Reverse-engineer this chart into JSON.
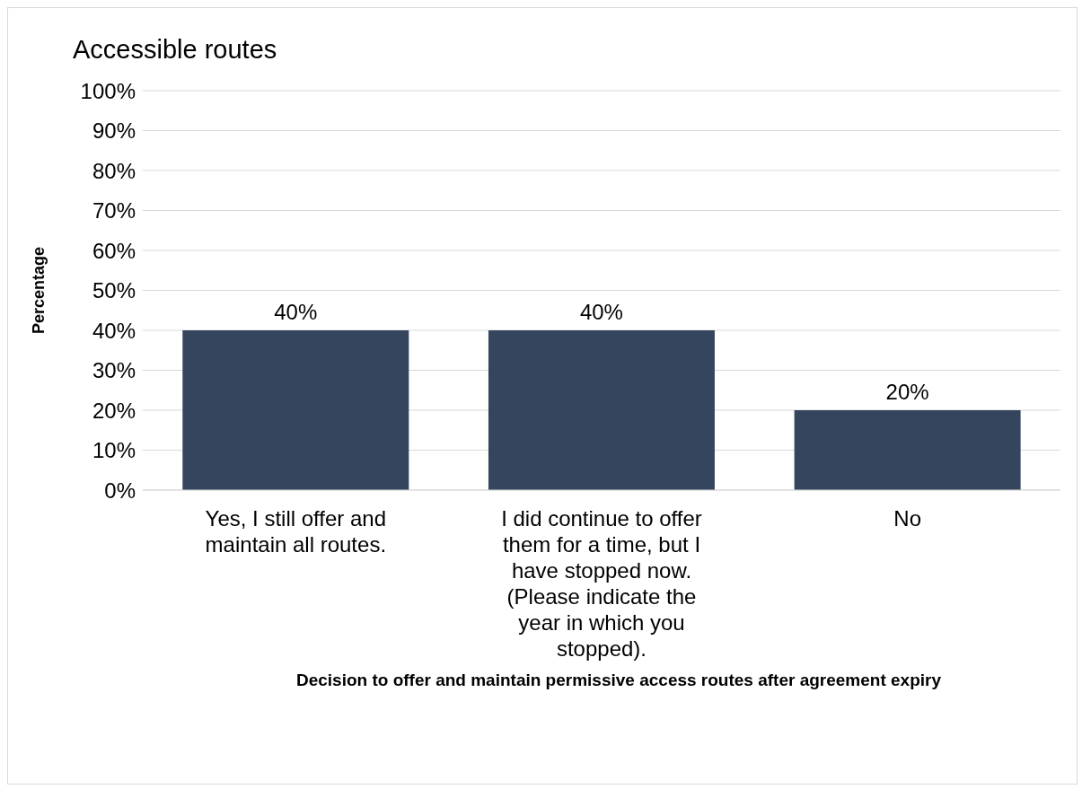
{
  "chart_data": {
    "type": "bar",
    "title": "Accessible routes",
    "xlabel": "Decision to offer and maintain permissive access routes after agreement expiry",
    "ylabel": "Percentage",
    "categories": [
      "Yes, I still offer and maintain all routes.",
      "I did continue to offer them for a time, but I have stopped now. (Please indicate the year in which you stopped).",
      "No"
    ],
    "values": [
      40,
      40,
      20
    ],
    "value_labels": [
      "40%",
      "40%",
      "20%"
    ],
    "color": "#36455e",
    "ylim": [
      0,
      100
    ],
    "yticks": [
      {
        "value": 0,
        "label": "0%"
      },
      {
        "value": 10,
        "label": "10%"
      },
      {
        "value": 20,
        "label": "20%"
      },
      {
        "value": 30,
        "label": "30%"
      },
      {
        "value": 40,
        "label": "40%"
      },
      {
        "value": 50,
        "label": "50%"
      },
      {
        "value": 60,
        "label": "60%"
      },
      {
        "value": 70,
        "label": "70%"
      },
      {
        "value": 80,
        "label": "80%"
      },
      {
        "value": 90,
        "label": "90%"
      },
      {
        "value": 100,
        "label": "100%"
      }
    ],
    "grid": "y"
  }
}
